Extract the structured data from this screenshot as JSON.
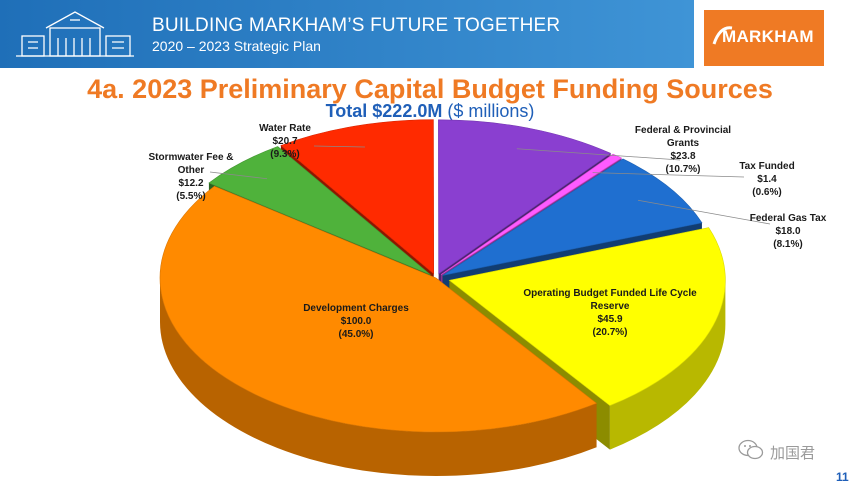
{
  "header": {
    "title": "BUILDING MARKHAM’S FUTURE TOGETHER",
    "subtitle": "2020 – 2023 Strategic Plan",
    "logo_text": "MARKHAM"
  },
  "colors": {
    "banner": "#2f82cc",
    "logo_bg": "#ef7a24",
    "title": "#ef7a24",
    "subtitle": "#1f5fb8"
  },
  "chart_data": {
    "type": "pie",
    "title": "4a. 2023 Preliminary Capital Budget Funding Sources",
    "subtitle_bold": "Total $222.0M",
    "subtitle_rest": "($ millions)",
    "slices": [
      {
        "label": "Operating Budget Funded Life Cycle Reserve",
        "value": 45.9,
        "value_text": "$45.9",
        "pct_text": "(20.7%)",
        "color": "#ffff00"
      },
      {
        "label": "Development Charges",
        "value": 100.0,
        "value_text": "$100.0",
        "pct_text": "(45.0%)",
        "color": "#ff8a00"
      },
      {
        "label": "Stormwater Fee & Other",
        "value": 12.2,
        "value_text": "$12.2",
        "pct_text": "(5.5%)",
        "color": "#4fb23b"
      },
      {
        "label": "Water Rate",
        "value": 20.7,
        "value_text": "$20.7",
        "pct_text": "(9.3%)",
        "color": "#ff2a00"
      },
      {
        "label": "Federal & Provincial Grants",
        "value": 23.8,
        "value_text": "$23.8",
        "pct_text": "(10.7%)",
        "color": "#8a3fd0"
      },
      {
        "label": "Tax Funded",
        "value": 1.4,
        "value_text": "$1.4",
        "pct_text": "(0.6%)",
        "color": "#ff5bff"
      },
      {
        "label": "Federal Gas Tax",
        "value": 18.0,
        "value_text": "$18.0",
        "pct_text": "(8.1%)",
        "color": "#1f6fd0"
      }
    ]
  },
  "footer": {
    "watermark": "加国君",
    "page_number": "11"
  }
}
